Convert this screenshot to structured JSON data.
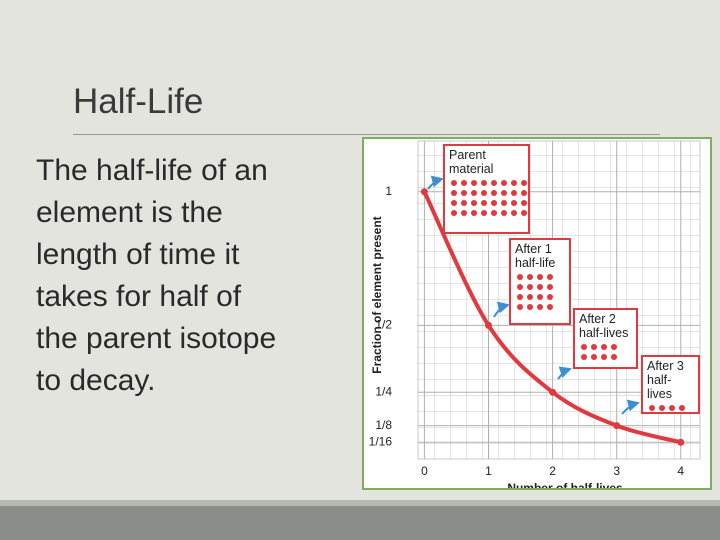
{
  "slide": {
    "title": "Half-Life",
    "body_lines": [
      "The half-life of an",
      "element is the",
      "length of time it",
      "takes for half of",
      "the parent isotope",
      "to decay."
    ]
  },
  "chart_data": {
    "type": "line",
    "x_label": "Number of half-lives",
    "y_label": "Fraction of element present",
    "x": [
      0,
      1,
      2,
      3,
      4
    ],
    "series": [
      {
        "name": "Fraction of element present",
        "color": "#e0393e",
        "values": [
          1,
          0.5,
          0.25,
          0.125,
          0.0625
        ]
      }
    ],
    "xlim": [
      -0.1,
      4.3
    ],
    "xticks": [
      0,
      1,
      2,
      3,
      4
    ],
    "ylim": [
      0,
      1.19
    ],
    "yticks": [
      1,
      {
        "value": 0.5,
        "label": "1/2"
      },
      {
        "value": 0.25,
        "label": "1/4"
      },
      {
        "value": 0.125,
        "label": "1/8"
      },
      {
        "value": 0.0625,
        "label": "1/16"
      }
    ],
    "grid": true,
    "annotations": [
      {
        "text": "Parent material",
        "count": 32
      },
      {
        "text": "After 1 half-life",
        "count": 16
      },
      {
        "text": "After 2 half-lives",
        "count": 8
      },
      {
        "text": "After 3 half-lives",
        "count": 4
      }
    ]
  }
}
